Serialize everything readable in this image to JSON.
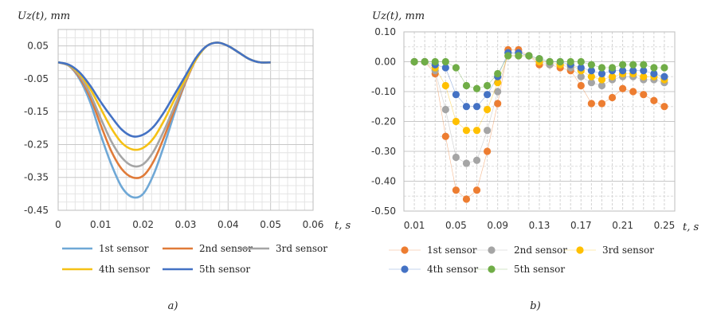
{
  "colors": {
    "s1": "#6fa8d6",
    "s2": "#e07b39",
    "s3": "#a5a5a5",
    "s4": "#f5c116",
    "s5": "#4472c4",
    "b1": "#ed7d31",
    "b2": "#a5a5a5",
    "b3": "#ffc000",
    "b4": "#4472c4",
    "b5": "#70ad47"
  },
  "chart_data": [
    {
      "type": "line",
      "panel_label": "a)",
      "ylabel": "Uz(t), mm",
      "xlabel": "t, s",
      "xlim": [
        0,
        0.06
      ],
      "ylim": [
        -0.45,
        0.1
      ],
      "x_ticks": [
        "0",
        "0.01",
        "0.02",
        "0.03",
        "0.04",
        "0.05",
        "0.06"
      ],
      "y_ticks": [
        "0.05",
        "-0.05",
        "-0.15",
        "-0.25",
        "-0.35",
        "-0.45"
      ],
      "grid": true,
      "legend_position": "bottom",
      "series": [
        {
          "name": "1st sensor",
          "color_key": "s1",
          "x": [
            0,
            0.0025,
            0.005,
            0.0075,
            0.01,
            0.0125,
            0.015,
            0.0175,
            0.02,
            0.0225,
            0.025,
            0.0275,
            0.03,
            0.0325,
            0.035,
            0.0375,
            0.04,
            0.0425,
            0.045,
            0.0475,
            0.05
          ],
          "y": [
            0,
            -0.01,
            -0.05,
            -0.12,
            -0.22,
            -0.31,
            -0.38,
            -0.41,
            -0.4,
            -0.34,
            -0.25,
            -0.15,
            -0.06,
            0.01,
            0.05,
            0.06,
            0.05,
            0.03,
            0.01,
            0.0,
            0.0
          ]
        },
        {
          "name": "2nd sensor",
          "color_key": "s2",
          "x": [
            0,
            0.0025,
            0.005,
            0.0075,
            0.01,
            0.0125,
            0.015,
            0.0175,
            0.02,
            0.0225,
            0.025,
            0.0275,
            0.03,
            0.0325,
            0.035,
            0.0375,
            0.04,
            0.0425,
            0.045,
            0.0475,
            0.05
          ],
          "y": [
            0,
            -0.01,
            -0.045,
            -0.105,
            -0.19,
            -0.27,
            -0.325,
            -0.35,
            -0.345,
            -0.3,
            -0.225,
            -0.14,
            -0.06,
            0.01,
            0.05,
            0.06,
            0.05,
            0.03,
            0.01,
            0.0,
            0.0
          ]
        },
        {
          "name": "3rd sensor",
          "color_key": "s3",
          "x": [
            0,
            0.0025,
            0.005,
            0.0075,
            0.01,
            0.0125,
            0.015,
            0.0175,
            0.02,
            0.0225,
            0.025,
            0.0275,
            0.03,
            0.0325,
            0.035,
            0.0375,
            0.04,
            0.0425,
            0.045,
            0.0475,
            0.05
          ],
          "y": [
            0,
            -0.01,
            -0.04,
            -0.095,
            -0.17,
            -0.24,
            -0.29,
            -0.315,
            -0.31,
            -0.27,
            -0.205,
            -0.13,
            -0.055,
            0.01,
            0.05,
            0.06,
            0.05,
            0.03,
            0.01,
            0.0,
            0.0
          ]
        },
        {
          "name": "4th sensor",
          "color_key": "s4",
          "x": [
            0,
            0.0025,
            0.005,
            0.0075,
            0.01,
            0.0125,
            0.015,
            0.0175,
            0.02,
            0.0225,
            0.025,
            0.0275,
            0.03,
            0.0325,
            0.035,
            0.0375,
            0.04,
            0.0425,
            0.045,
            0.0475,
            0.05
          ],
          "y": [
            0,
            -0.008,
            -0.035,
            -0.08,
            -0.14,
            -0.2,
            -0.245,
            -0.265,
            -0.26,
            -0.23,
            -0.175,
            -0.11,
            -0.05,
            0.01,
            0.05,
            0.06,
            0.05,
            0.03,
            0.01,
            0.0,
            0.0
          ]
        },
        {
          "name": "5th sensor",
          "color_key": "s5",
          "x": [
            0,
            0.0025,
            0.005,
            0.0075,
            0.01,
            0.0125,
            0.015,
            0.0175,
            0.02,
            0.0225,
            0.025,
            0.0275,
            0.03,
            0.0325,
            0.035,
            0.0375,
            0.04,
            0.0425,
            0.045,
            0.0475,
            0.05
          ],
          "y": [
            0,
            -0.007,
            -0.03,
            -0.07,
            -0.12,
            -0.165,
            -0.205,
            -0.225,
            -0.22,
            -0.195,
            -0.15,
            -0.095,
            -0.04,
            0.015,
            0.05,
            0.06,
            0.05,
            0.03,
            0.01,
            0.0,
            0.0
          ]
        }
      ]
    },
    {
      "type": "scatter",
      "panel_label": "b)",
      "ylabel": "Uz(t), mm",
      "xlabel": "t, s",
      "xlim": [
        0,
        0.26
      ],
      "ylim": [
        -0.5,
        0.1
      ],
      "x_ticks": [
        "0.01",
        "0.05",
        "0.09",
        "0.13",
        "0.17",
        "0.21",
        "0.25"
      ],
      "y_ticks": [
        "0.10",
        "0.00",
        "-0.10",
        "-0.20",
        "-0.30",
        "-0.40",
        "-0.50"
      ],
      "grid": true,
      "legend_position": "bottom",
      "x": [
        0.01,
        0.02,
        0.03,
        0.04,
        0.05,
        0.06,
        0.07,
        0.08,
        0.09,
        0.1,
        0.11,
        0.12,
        0.13,
        0.14,
        0.15,
        0.16,
        0.17,
        0.18,
        0.19,
        0.2,
        0.21,
        0.22,
        0.23,
        0.24,
        0.25
      ],
      "series": [
        {
          "name": "1st sensor",
          "color_key": "b1",
          "y": [
            0,
            0,
            -0.04,
            -0.25,
            -0.43,
            -0.46,
            -0.43,
            -0.3,
            -0.14,
            0.04,
            0.04,
            0.02,
            -0.01,
            -0.01,
            -0.02,
            -0.03,
            -0.08,
            -0.14,
            -0.14,
            -0.12,
            -0.09,
            -0.1,
            -0.11,
            -0.13,
            -0.15
          ]
        },
        {
          "name": "2nd sensor",
          "color_key": "b2",
          "y": [
            0,
            0,
            -0.03,
            -0.16,
            -0.32,
            -0.34,
            -0.33,
            -0.23,
            -0.1,
            0.03,
            0.03,
            0.02,
            0.0,
            -0.01,
            -0.01,
            -0.02,
            -0.05,
            -0.07,
            -0.08,
            -0.06,
            -0.05,
            -0.05,
            -0.06,
            -0.06,
            -0.07
          ]
        },
        {
          "name": "3rd sensor",
          "color_key": "b3",
          "y": [
            0,
            0,
            -0.02,
            -0.08,
            -0.2,
            -0.23,
            -0.23,
            -0.16,
            -0.07,
            0.02,
            0.02,
            0.02,
            0.0,
            0.0,
            -0.01,
            -0.01,
            -0.03,
            -0.05,
            -0.06,
            -0.05,
            -0.04,
            -0.04,
            -0.05,
            -0.05,
            -0.06
          ]
        },
        {
          "name": "4th sensor",
          "color_key": "b4",
          "y": [
            0,
            0,
            -0.01,
            -0.02,
            -0.11,
            -0.15,
            -0.15,
            -0.11,
            -0.05,
            0.03,
            0.03,
            0.02,
            0.01,
            0.0,
            0.0,
            -0.01,
            -0.02,
            -0.03,
            -0.04,
            -0.03,
            -0.03,
            -0.03,
            -0.03,
            -0.04,
            -0.05
          ]
        },
        {
          "name": "5th sensor",
          "color_key": "b5",
          "y": [
            0,
            0,
            0,
            0,
            -0.02,
            -0.08,
            -0.09,
            -0.08,
            -0.04,
            0.02,
            0.02,
            0.02,
            0.01,
            0.0,
            0.0,
            0.0,
            0.0,
            -0.01,
            -0.02,
            -0.02,
            -0.01,
            -0.01,
            -0.01,
            -0.02,
            -0.02
          ]
        }
      ]
    }
  ]
}
